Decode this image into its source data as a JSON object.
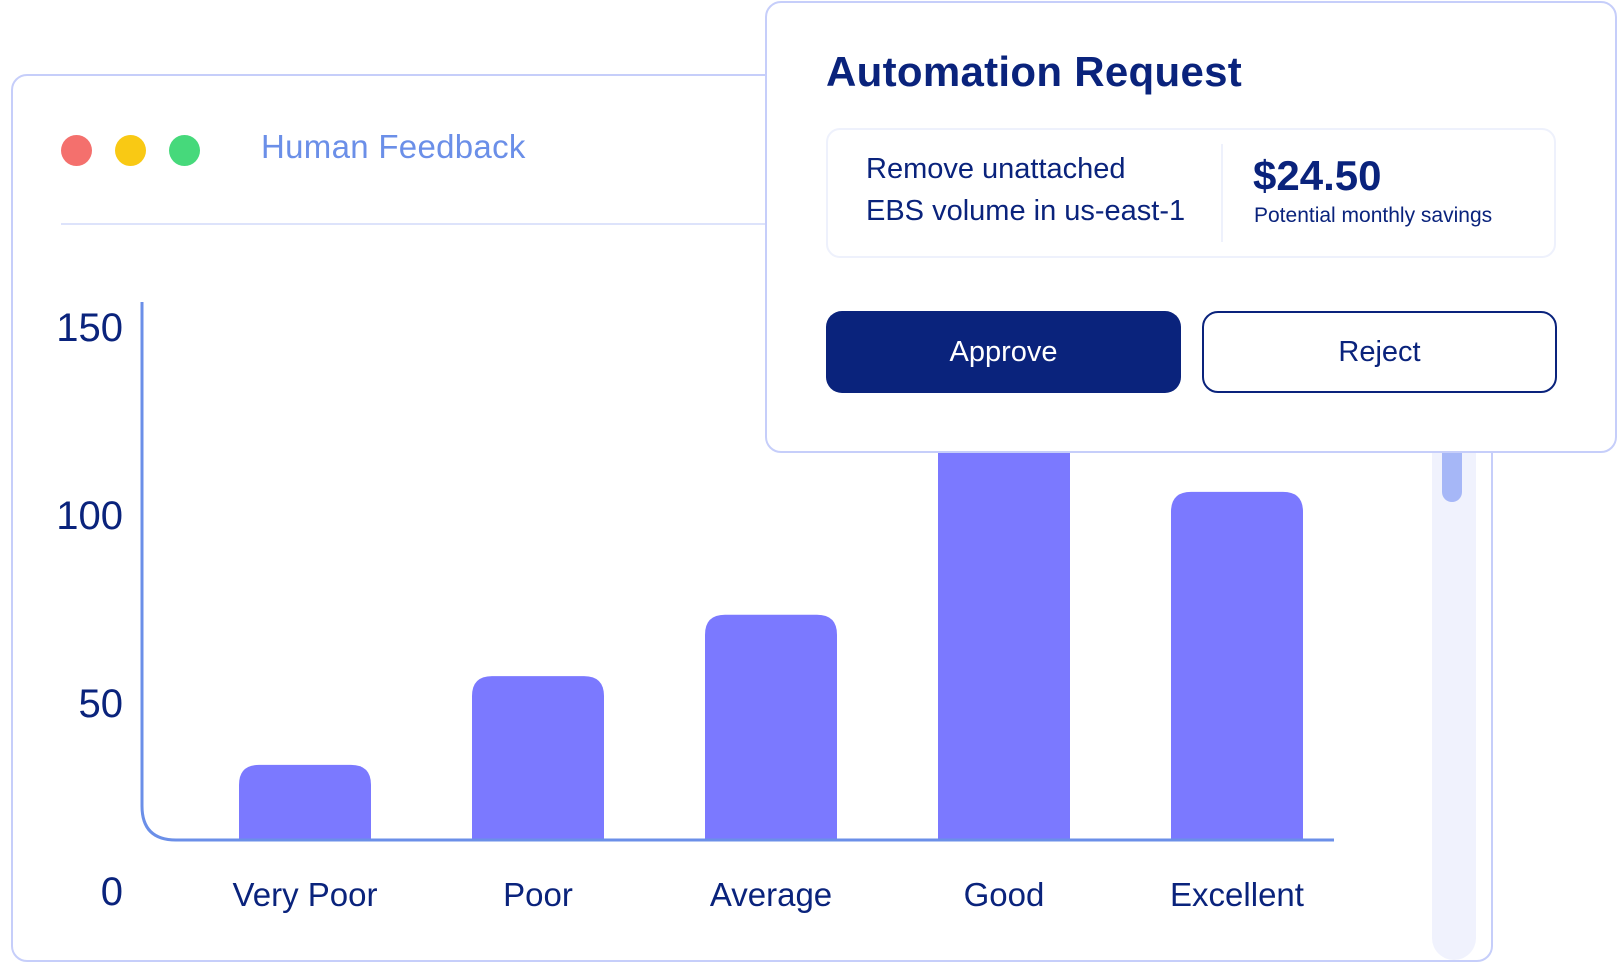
{
  "colors": {
    "navy": "#0a237c",
    "title_blue": "#6b8fe8",
    "bar": "#7b79ff",
    "axis": "#6b8fe8",
    "scroll_thumb": "#a6b7f7",
    "dot_red": "#f4706d",
    "dot_yellow": "#f9c914",
    "dot_green": "#46d97b"
  },
  "window": {
    "title": "Human Feedback",
    "controls": [
      "close-dot",
      "minimize-dot",
      "maximize-dot"
    ]
  },
  "chart_data": {
    "type": "bar",
    "categories": [
      "Very Poor",
      "Poor",
      "Average",
      "Good",
      "Excellent"
    ],
    "values": [
      22,
      48,
      66,
      150,
      102
    ],
    "yticks": [
      0,
      50,
      100,
      150
    ],
    "ylim": [
      0,
      150
    ],
    "grid": false,
    "legend": "none"
  },
  "automation_request": {
    "title": "Automation Request",
    "description_lines": [
      "Remove unattached",
      "EBS volume in us-east-1"
    ],
    "savings_amount": "$24.50",
    "savings_label": "Potential monthly savings",
    "approve_label": "Approve",
    "reject_label": "Reject"
  }
}
